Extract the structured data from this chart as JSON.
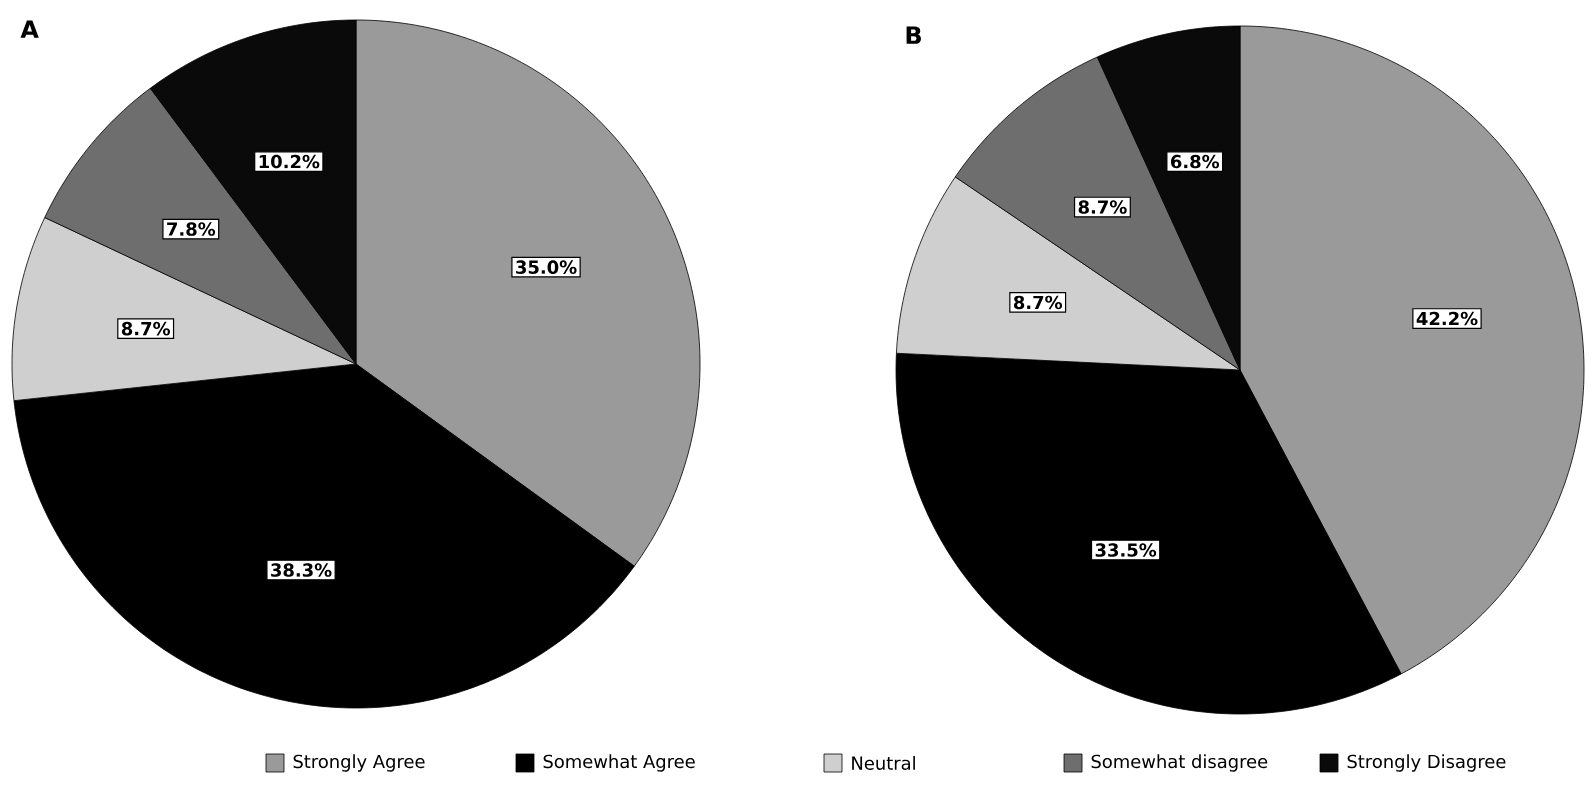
{
  "chart_data": [
    {
      "type": "pie",
      "title": "A",
      "categories": [
        "Strongly Agree",
        "Somewhat Agree",
        "Neutral",
        "Somewhat disagree",
        "Strongly Disagree"
      ],
      "values": [
        35.0,
        38.3,
        8.7,
        7.8,
        10.2
      ],
      "value_labels": [
        "35.0%",
        "38.3%",
        "8.7%",
        "7.8%",
        "10.2%"
      ],
      "colors": [
        "#9a9a9a",
        "#000000",
        "#cfcfcf",
        "#6e6e6e",
        "#0a0a0a"
      ],
      "legend": "bottom"
    },
    {
      "type": "pie",
      "title": "B",
      "values": [
        42.2,
        33.5,
        8.7,
        8.7,
        6.8
      ],
      "value_labels": [
        "42.2%",
        "33.5%",
        "8.7%",
        "8.7%",
        "6.8%"
      ],
      "colors": [
        "#9a9a9a",
        "#000000",
        "#cfcfcf",
        "#6e6e6e",
        "#0a0a0a"
      ]
    }
  ]
}
